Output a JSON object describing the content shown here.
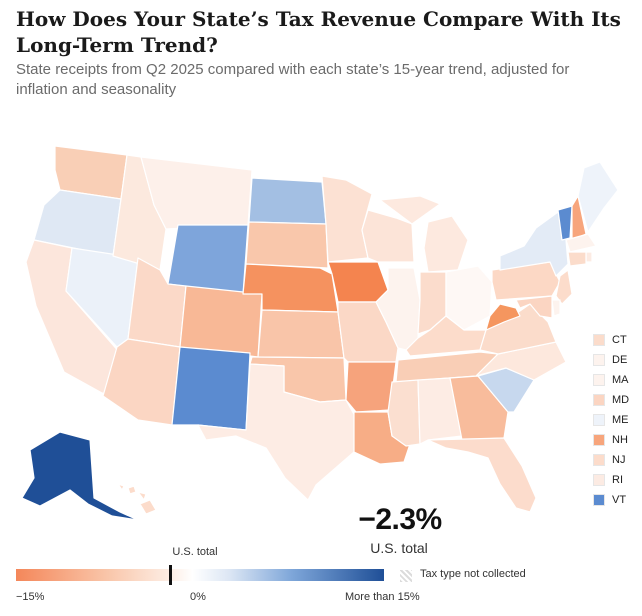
{
  "title": "How Does Your State’s Tax Revenue Compare With Its Long-Term Trend?",
  "subtitle": "State receipts from Q2 2025 compared with each state’s 15-year trend, adjusted for inflation and seasonality",
  "map": {
    "states": [
      {
        "code": "WA",
        "color": "#f9cfb6"
      },
      {
        "code": "OR",
        "color": "#dfe8f4"
      },
      {
        "code": "CA",
        "color": "#fce6dc"
      },
      {
        "code": "NV",
        "color": "#ebf1f9"
      },
      {
        "code": "ID",
        "color": "#fce9de"
      },
      {
        "code": "MT",
        "color": "#fdf0ea"
      },
      {
        "code": "WY",
        "color": "#7ea5db"
      },
      {
        "code": "UT",
        "color": "#fbd9c8"
      },
      {
        "code": "AZ",
        "color": "#fbd6c3"
      },
      {
        "code": "CO",
        "color": "#f8b896"
      },
      {
        "code": "NM",
        "color": "#5b8bd0"
      },
      {
        "code": "ND",
        "color": "#a3bfe3"
      },
      {
        "code": "SD",
        "color": "#f9c7ab"
      },
      {
        "code": "NE",
        "color": "#f5925f"
      },
      {
        "code": "KS",
        "color": "#f9c5a9"
      },
      {
        "code": "OK",
        "color": "#f9c6aa"
      },
      {
        "code": "TX",
        "color": "#fdece4"
      },
      {
        "code": "MN",
        "color": "#fce1d3"
      },
      {
        "code": "IA",
        "color": "#f4844f"
      },
      {
        "code": "MO",
        "color": "#fbd8c6"
      },
      {
        "code": "AR",
        "color": "#f6a37c"
      },
      {
        "code": "LA",
        "color": "#f7ad86"
      },
      {
        "code": "WI",
        "color": "#fce4d8"
      },
      {
        "code": "IL",
        "color": "#fdf3ee"
      },
      {
        "code": "MI",
        "color": "#fde9df"
      },
      {
        "code": "IN",
        "color": "#fbdccc"
      },
      {
        "code": "OH",
        "color": "#fef8f5"
      },
      {
        "code": "KY",
        "color": "#fcdccb"
      },
      {
        "code": "TN",
        "color": "#f9ceb6"
      },
      {
        "code": "MS",
        "color": "#fbdfd0"
      },
      {
        "code": "AL",
        "color": "#fdece4"
      },
      {
        "code": "GA",
        "color": "#f8bc9c"
      },
      {
        "code": "FL",
        "color": "#fcdccc"
      },
      {
        "code": "SC",
        "color": "#c7d8ee"
      },
      {
        "code": "NC",
        "color": "#fde8dd"
      },
      {
        "code": "VA",
        "color": "#fbdccb"
      },
      {
        "code": "WV",
        "color": "#f5965f"
      },
      {
        "code": "PA",
        "color": "#fcd8c5"
      },
      {
        "code": "NY",
        "color": "#e3ebf6"
      },
      {
        "code": "VT",
        "color": "#5b8bd0"
      },
      {
        "code": "NH",
        "color": "#f7a57c"
      },
      {
        "code": "ME",
        "color": "#eef3fa"
      },
      {
        "code": "MA",
        "color": "#fdf3ee"
      },
      {
        "code": "CT",
        "color": "#fbdccb"
      },
      {
        "code": "RI",
        "color": "#fcebe3"
      },
      {
        "code": "NJ",
        "color": "#fcdccb"
      },
      {
        "code": "DE",
        "color": "#fdf3ee"
      },
      {
        "code": "MD",
        "color": "#fbd5c2"
      },
      {
        "code": "AK",
        "color": "#1f4f97"
      },
      {
        "code": "HI",
        "color": "#fcdccb"
      }
    ]
  },
  "small_states_legend": [
    {
      "label": "CT",
      "color": "#fbdccb"
    },
    {
      "label": "DE",
      "color": "#fdf3ee"
    },
    {
      "label": "MA",
      "color": "#fdf3ee"
    },
    {
      "label": "MD",
      "color": "#fbd5c2"
    },
    {
      "label": "ME",
      "color": "#eef3fa"
    },
    {
      "label": "NH",
      "color": "#f7a57c"
    },
    {
      "label": "NJ",
      "color": "#fcdccb"
    },
    {
      "label": "RI",
      "color": "#fcebe3"
    },
    {
      "label": "VT",
      "color": "#5b8bd0"
    }
  ],
  "us_total": {
    "value": "−2.3%",
    "label": "U.S. total",
    "scale_label": "U.S. total"
  },
  "scale": {
    "min_label": "−15%",
    "mid_label": "0%",
    "max_label": "More than 15%",
    "not_collected_label": "Tax type not collected",
    "min_color": "#f4875a",
    "max_color": "#1f4f97"
  }
}
